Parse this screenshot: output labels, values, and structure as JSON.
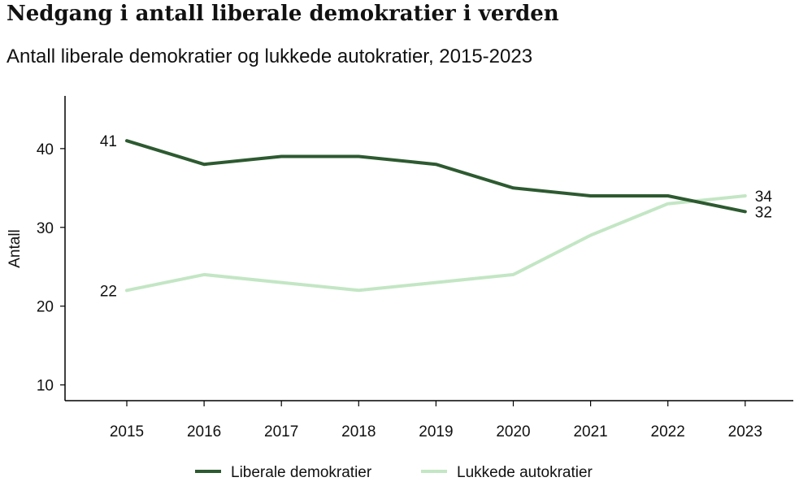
{
  "chart_data": {
    "type": "line",
    "title": "Nedgang i antall liberale demokratier i verden",
    "subtitle": "Antall liberale demokratier og lukkede autokratier, 2015-2023",
    "xlabel": "",
    "ylabel": "Antall",
    "x": [
      "2015",
      "2016",
      "2017",
      "2018",
      "2019",
      "2020",
      "2021",
      "2022",
      "2023"
    ],
    "ylim": [
      8,
      47
    ],
    "yticks": [
      10,
      20,
      30,
      40
    ],
    "grid": false,
    "legend_position": "bottom",
    "series": [
      {
        "name": "Liberale demokratier",
        "color": "#2d5a30",
        "values": [
          41,
          38,
          39,
          39,
          38,
          35,
          34,
          34,
          32
        ],
        "labels": {
          "first": "41",
          "last": "32"
        }
      },
      {
        "name": "Lukkede autokratier",
        "color": "#c3e6c4",
        "values": [
          22,
          24,
          23,
          22,
          23,
          24,
          29,
          33,
          34
        ],
        "labels": {
          "first": "22",
          "last": "34"
        }
      }
    ]
  }
}
